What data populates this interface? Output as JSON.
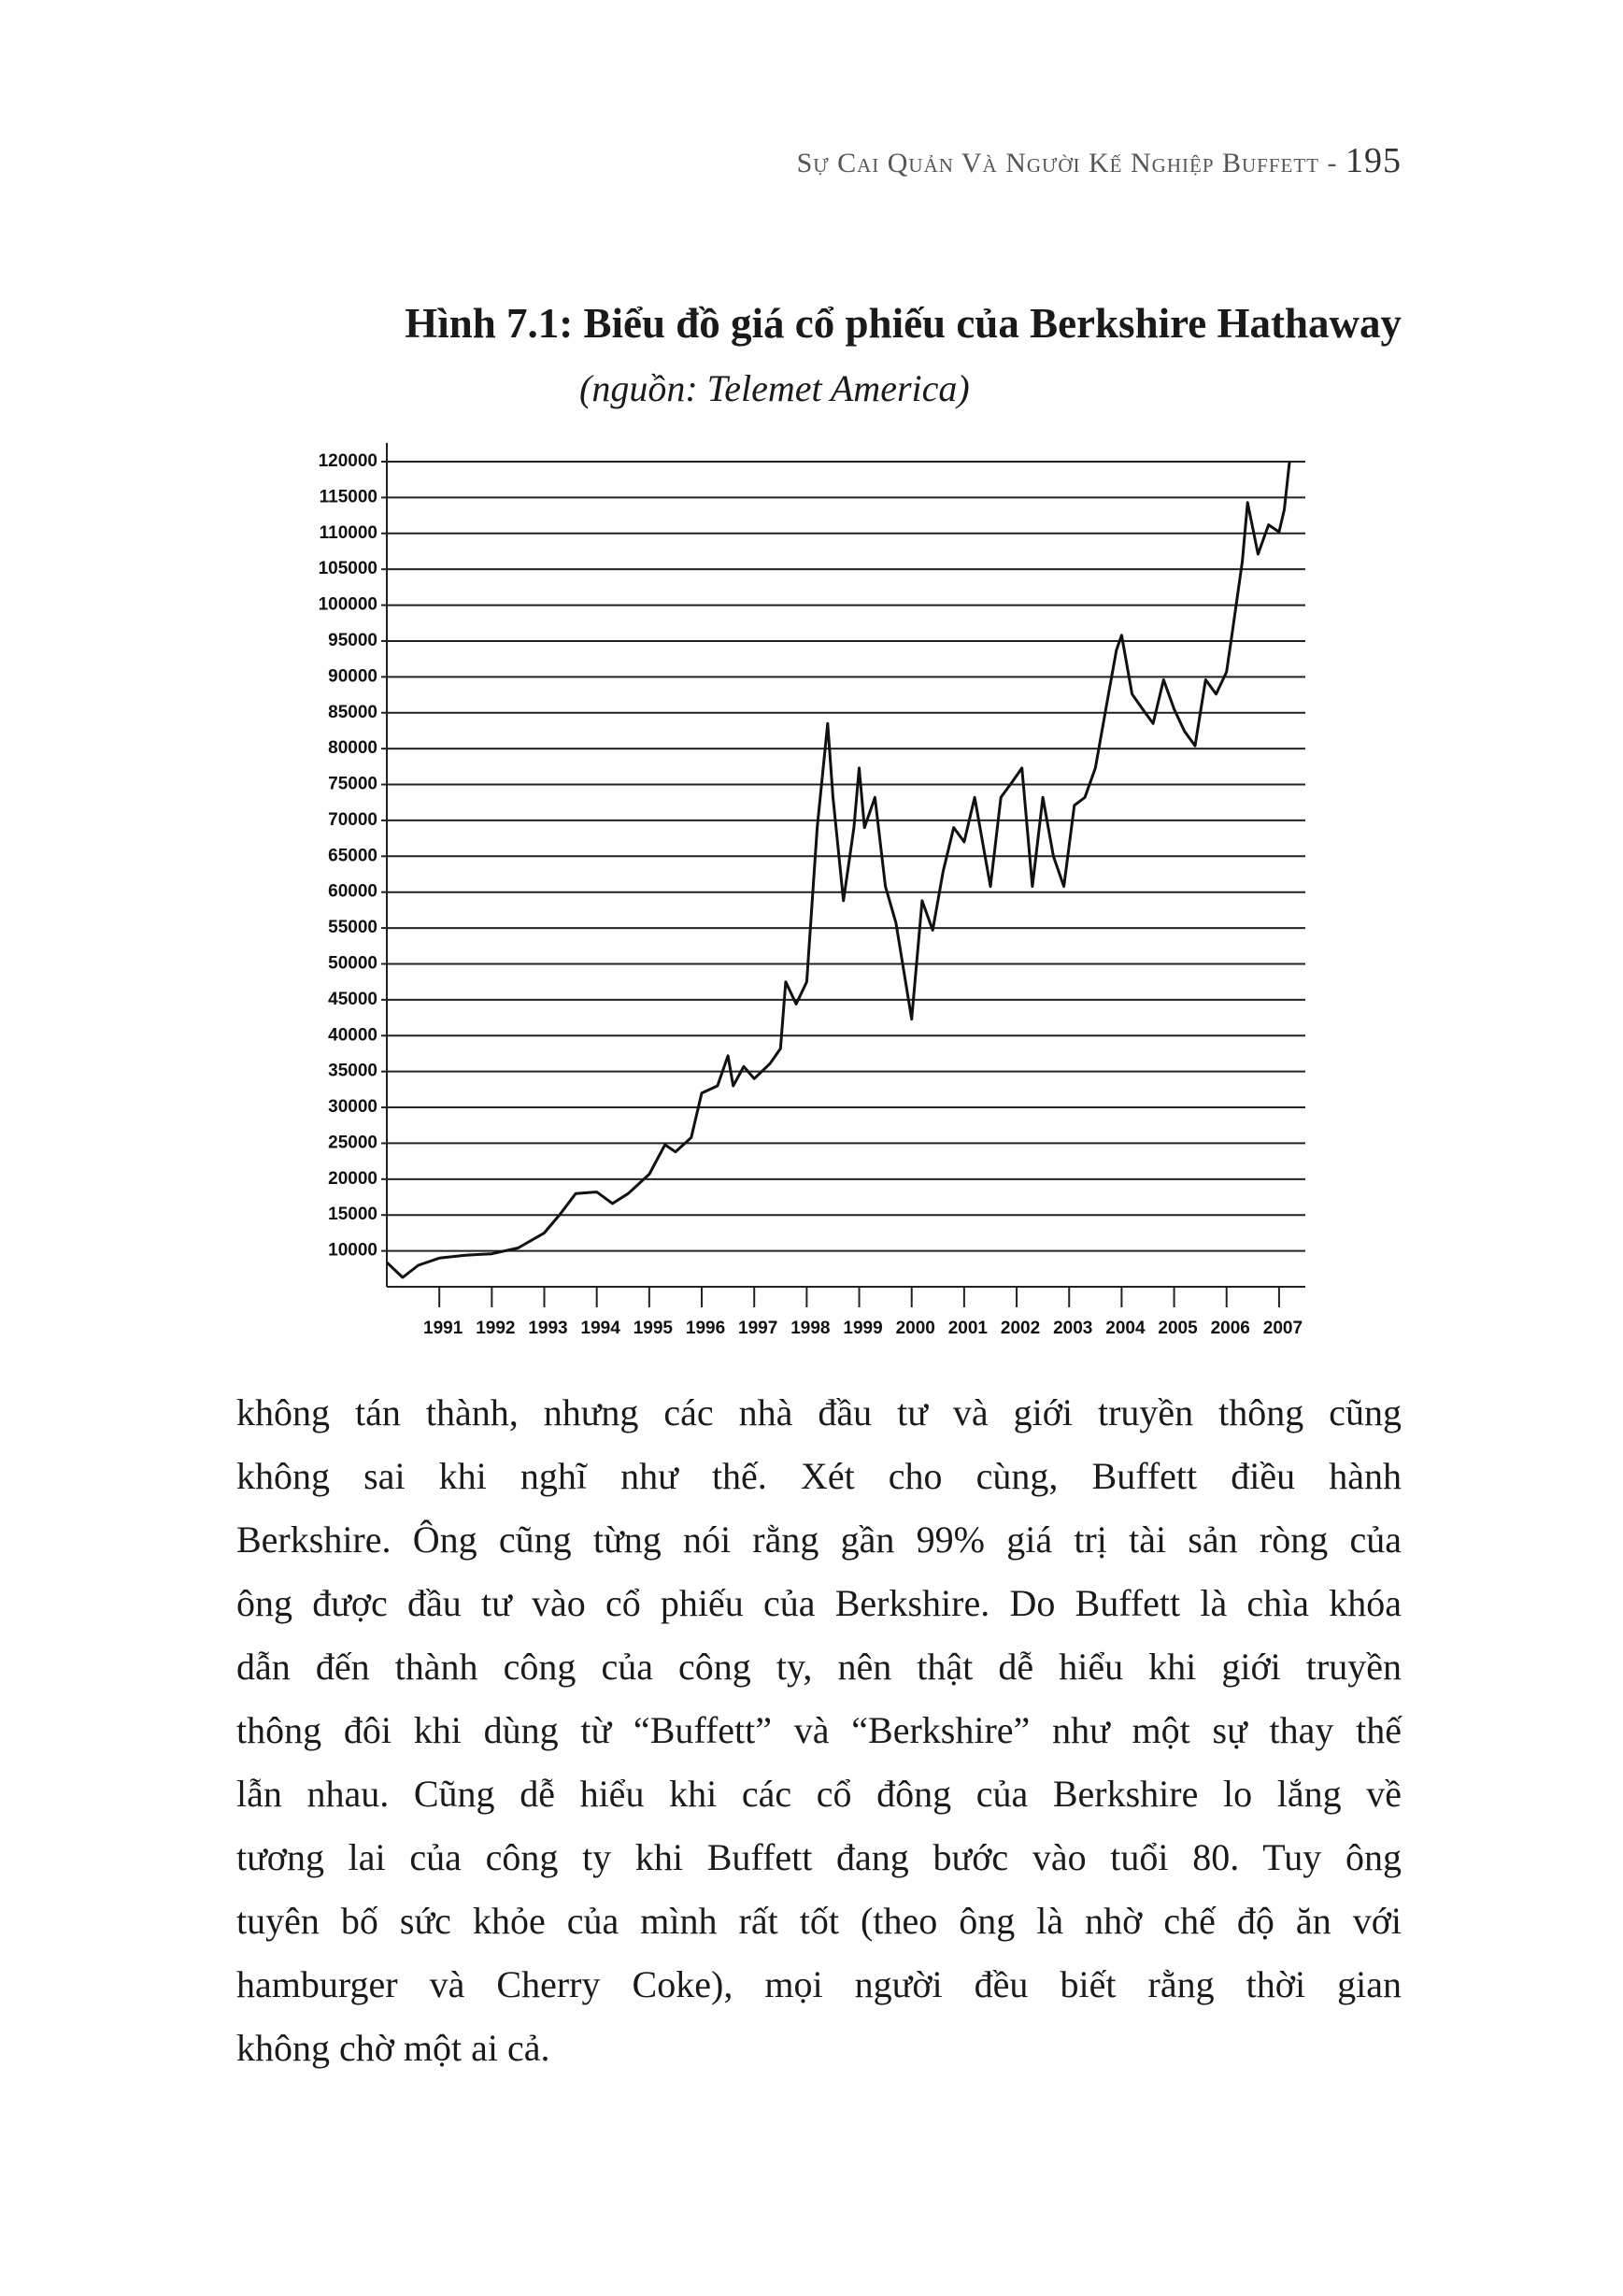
{
  "header": {
    "running_title": "Sự Cai Quản Và Người Kế Nghiệp Buffett -",
    "page_number": "195"
  },
  "figure": {
    "title": "Hình 7.1: Biểu đồ giá cổ phiếu của Berkshire Hathaway",
    "source": "(nguồn: Telemet America)"
  },
  "chart_data": {
    "type": "line",
    "color": "#111111",
    "grid": true,
    "x": [
      1990.0,
      1990.3,
      1990.6,
      1991.0,
      1991.5,
      1992.0,
      1992.5,
      1993.0,
      1993.3,
      1993.6,
      1994.0,
      1994.3,
      1994.6,
      1995.0,
      1995.3,
      1995.5,
      1995.8,
      1996.0,
      1996.3,
      1996.5,
      1996.6,
      1996.8,
      1997.0,
      1997.3,
      1997.5,
      1997.6,
      1997.8,
      1998.0,
      1998.2,
      1998.4,
      1998.5,
      1998.7,
      1998.9,
      1999.0,
      1999.1,
      1999.3,
      1999.5,
      1999.7,
      2000.0,
      2000.2,
      2000.4,
      2000.6,
      2000.8,
      2001.0,
      2001.2,
      2001.5,
      2001.7,
      2001.9,
      2002.1,
      2002.3,
      2002.5,
      2002.7,
      2002.9,
      2003.1,
      2003.3,
      2003.5,
      2003.7,
      2003.9,
      2004.0,
      2004.2,
      2004.4,
      2004.6,
      2004.8,
      2005.0,
      2005.2,
      2005.4,
      2005.6,
      2005.8,
      2006.0,
      2006.1,
      2006.3,
      2006.4,
      2006.6,
      2006.8,
      2007.0,
      2007.1,
      2007.2
    ],
    "values": [
      8400,
      6300,
      8000,
      9000,
      9400,
      9600,
      10400,
      12500,
      15100,
      18000,
      18200,
      16600,
      18000,
      20700,
      24800,
      23800,
      25800,
      32000,
      33000,
      37200,
      33000,
      35700,
      34000,
      36100,
      38200,
      47500,
      44400,
      47500,
      69000,
      83500,
      73200,
      58800,
      69000,
      77300,
      69000,
      73200,
      60800,
      55700,
      42300,
      58800,
      54700,
      62900,
      69000,
      67000,
      73200,
      60800,
      73200,
      75200,
      77300,
      60800,
      73200,
      65000,
      60800,
      72100,
      73200,
      77300,
      85500,
      93700,
      95800,
      87600,
      85500,
      83500,
      89600,
      85500,
      82400,
      80400,
      89600,
      87600,
      90700,
      95800,
      106100,
      114300,
      107100,
      111200,
      110200,
      113300,
      120000
    ],
    "xlim": [
      1990,
      2007.5
    ],
    "xticks": [
      1991,
      1992,
      1993,
      1994,
      1995,
      1996,
      1997,
      1998,
      1999,
      2000,
      2001,
      2002,
      2003,
      2004,
      2005,
      2006,
      2007
    ],
    "ylim": [
      5000,
      120000
    ],
    "yticks": [
      10000,
      15000,
      20000,
      25000,
      30000,
      35000,
      40000,
      45000,
      50000,
      55000,
      60000,
      65000,
      70000,
      75000,
      80000,
      85000,
      90000,
      95000,
      100000,
      105000,
      110000,
      115000,
      120000
    ]
  },
  "body": {
    "lines": [
      "không tán thành, nhưng các nhà đầu tư và giới truyền thông cũng",
      "không sai khi nghĩ như thế. Xét cho cùng, Buffett điều hành",
      "Berkshire. Ông cũng từng nói rằng gần 99% giá trị tài sản ròng của",
      "ông được đầu tư vào cổ phiếu của Berkshire. Do Buffett là chìa khóa",
      "dẫn đến thành công của công ty, nên thật dễ hiểu khi giới truyền",
      "thông đôi khi dùng từ “Buffett” và “Berkshire” như một sự thay thế",
      "lẫn nhau. Cũng dễ hiểu khi các cổ đông của Berkshire lo lắng về",
      "tương lai của công ty khi Buffett đang bước vào tuổi 80. Tuy ông",
      "tuyên bố sức khỏe của mình rất tốt (theo ông là nhờ chế độ ăn với",
      "hamburger và Cherry Coke), mọi người đều biết rằng thời gian",
      "không chờ một ai cả."
    ]
  }
}
